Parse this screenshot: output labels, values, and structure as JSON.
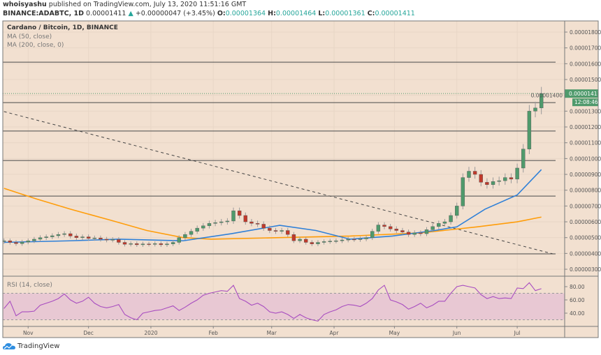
{
  "header": {
    "author": "whoisyashu",
    "published": "published on TradingView.com, July 13, 2020 11:51:16 GMT",
    "symbol": "BINANCE:ADABTC, 1D",
    "last": "0.00001411",
    "change": "+0.00000047 (+3.45%)",
    "o_label": "O:",
    "o": "0.00001364",
    "h_label": "H:",
    "h": "0.00001464",
    "l_label": "L:",
    "l": "0.00001361",
    "c_label": "C:",
    "c": "0.00001411"
  },
  "legend": {
    "title": "Cardano / Bitcoin, 1D, BINANCE",
    "ma50": "MA (50, close)",
    "ma200": "MA (200, close, 0)",
    "rsi": "RSI (14, close)"
  },
  "price_label": {
    "value": "0.00001411",
    "countdown": "12:08:46"
  },
  "brand": "TradingView",
  "colors": {
    "background": "#f2e0d0",
    "up": "#4f9a6c",
    "down": "#c0392b",
    "ma50": "#2f80d8",
    "ma200": "#ff9d0a",
    "rsi": "#a84dc0",
    "rsi_band": "#e8c8d3",
    "hline": "#4a4a4a",
    "last_price": "#4f9a6c"
  },
  "chart_data": {
    "type": "candlestick",
    "start_date": "2019-10-20",
    "step_days": 3,
    "ylim": [
      2.5e-06,
      1.9e-05
    ],
    "y_ticks": [
      "0.00000300",
      "0.00000400",
      "0.00000500",
      "0.00000600",
      "0.00000700",
      "0.00000800",
      "0.00000900",
      "0.00001000",
      "0.00001100",
      "0.00001200",
      "0.00001300",
      "0.00001400",
      "0.00001500",
      "0.00001600",
      "0.00001700",
      "0.00001800"
    ],
    "x_ticks": [
      {
        "label": "Nov",
        "date": "2019-11-01"
      },
      {
        "label": "Dec",
        "date": "2019-12-01"
      },
      {
        "label": "2020",
        "date": "2020-01-01"
      },
      {
        "label": "Feb",
        "date": "2020-02-01"
      },
      {
        "label": "Mar",
        "date": "2020-03-01"
      },
      {
        "label": "Apr",
        "date": "2020-04-01"
      },
      {
        "label": "May",
        "date": "2020-05-01"
      },
      {
        "label": "Jun",
        "date": "2020-06-01"
      },
      {
        "label": "Jul",
        "date": "2020-07-01"
      }
    ],
    "closes": [
      4.8e-06,
      4.7e-06,
      4.62e-06,
      4.72e-06,
      4.8e-06,
      4.9e-06,
      5e-06,
      5.05e-06,
      5.12e-06,
      5.2e-06,
      5.25e-06,
      5.1e-06,
      5e-06,
      5.05e-06,
      4.95e-06,
      4.98e-06,
      4.9e-06,
      4.85e-06,
      4.88e-06,
      4.7e-06,
      4.58e-06,
      4.62e-06,
      4.55e-06,
      4.6e-06,
      4.58e-06,
      4.62e-06,
      4.55e-06,
      4.6e-06,
      4.7e-06,
      5e-06,
      5.2e-06,
      5.4e-06,
      5.6e-06,
      5.75e-06,
      5.9e-06,
      5.95e-06,
      6e-06,
      6.05e-06,
      6.7e-06,
      6.4e-06,
      6e-06,
      5.9e-06,
      5.85e-06,
      5.6e-06,
      5.45e-06,
      5.4e-06,
      5.45e-06,
      5.2e-06,
      4.8e-06,
      4.9e-06,
      4.7e-06,
      4.6e-06,
      4.7e-06,
      4.75e-06,
      4.78e-06,
      4.8e-06,
      4.85e-06,
      4.9e-06,
      4.88e-06,
      4.92e-06,
      5e-06,
      5.4e-06,
      5.8e-06,
      5.7e-06,
      5.55e-06,
      5.45e-06,
      5.35e-06,
      5.2e-06,
      5.3e-06,
      5.25e-06,
      5.5e-06,
      5.7e-06,
      5.9e-06,
      6e-06,
      6.4e-06,
      7e-06,
      8.8e-06,
      9.2e-06,
      9e-06,
      8.5e-06,
      8.35e-06,
      8.55e-06,
      8.6e-06,
      8.8e-06,
      8.7e-06,
      9.4e-06,
      1.06e-05,
      1.3e-05,
      1.32e-05,
      1.411e-05
    ],
    "ma50": [
      [
        "2019-10-20",
        4.7e-06
      ],
      [
        "2019-11-22",
        4.8e-06
      ],
      [
        "2019-12-16",
        4.9e-06
      ],
      [
        "2020-01-17",
        4.8e-06
      ],
      [
        "2020-02-10",
        5.25e-06
      ],
      [
        "2020-03-05",
        5.78e-06
      ],
      [
        "2020-03-23",
        5.45e-06
      ],
      [
        "2020-04-09",
        4.9e-06
      ],
      [
        "2020-04-30",
        5.1e-06
      ],
      [
        "2020-05-21",
        5.45e-06
      ],
      [
        "2020-06-01",
        5.68e-06
      ],
      [
        "2020-06-15",
        6.8e-06
      ],
      [
        "2020-07-01",
        7.7e-06
      ],
      [
        "2020-07-13",
        9.3e-06
      ]
    ],
    "ma200": [
      [
        "2019-10-20",
        8.12e-06
      ],
      [
        "2019-11-05",
        7.45e-06
      ],
      [
        "2019-11-22",
        6.8e-06
      ],
      [
        "2019-12-12",
        6.1e-06
      ],
      [
        "2019-12-30",
        5.45e-06
      ],
      [
        "2020-01-17",
        5e-06
      ],
      [
        "2020-01-31",
        4.9e-06
      ],
      [
        "2020-03-05",
        5e-06
      ],
      [
        "2020-04-09",
        5.1e-06
      ],
      [
        "2020-05-14",
        5.3e-06
      ],
      [
        "2020-06-11",
        5.68e-06
      ],
      [
        "2020-07-01",
        6e-06
      ],
      [
        "2020-07-13",
        6.3e-06
      ]
    ],
    "horizontal_levels": [
      1.61e-05,
      1.354e-05,
      1.174e-05,
      9.88e-06,
      7.63e-06,
      3.97e-06
    ],
    "trendline": [
      [
        "2019-10-20",
        1.297e-05
      ],
      [
        "2020-07-20",
        3.93e-06
      ]
    ],
    "last_price": 1.411e-05,
    "rsi": {
      "ylim": [
        20,
        90
      ],
      "ticks": [
        "40.00",
        "60.00",
        "80.00"
      ],
      "band": [
        30,
        70
      ],
      "values": [
        47,
        58,
        36,
        42,
        42,
        43,
        52,
        55,
        58,
        62,
        69,
        60,
        55,
        58,
        64,
        55,
        50,
        48,
        50,
        53,
        38,
        33,
        30,
        40,
        42,
        44,
        45,
        48,
        51,
        44,
        49,
        55,
        60,
        67,
        70,
        72,
        74,
        73,
        82,
        62,
        58,
        52,
        55,
        50,
        42,
        40,
        42,
        38,
        32,
        38,
        33,
        30,
        28,
        38,
        42,
        45,
        50,
        53,
        52,
        50,
        55,
        62,
        75,
        82,
        60,
        57,
        53,
        46,
        50,
        55,
        48,
        52,
        58,
        58,
        70,
        80,
        82,
        80,
        78,
        68,
        62,
        65,
        62,
        63,
        62,
        78,
        77,
        86,
        74,
        77
      ]
    }
  }
}
